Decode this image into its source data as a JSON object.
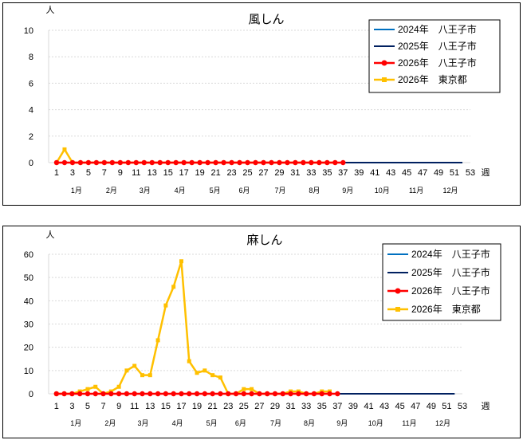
{
  "charts": [
    {
      "type": "line",
      "title": "風しん",
      "y_unit": "人",
      "x_unit": "週",
      "ylim": [
        0,
        10
      ],
      "y_ticks": [
        0,
        2,
        4,
        6,
        8,
        10
      ],
      "x_ticks": [
        1,
        3,
        5,
        7,
        9,
        11,
        13,
        15,
        17,
        19,
        21,
        23,
        25,
        27,
        29,
        31,
        33,
        35,
        37,
        39,
        41,
        43,
        45,
        47,
        49,
        51,
        53
      ],
      "months": [
        {
          "label": "1月",
          "week": 3.5
        },
        {
          "label": "2月",
          "week": 7.9
        },
        {
          "label": "3月",
          "week": 12.1
        },
        {
          "label": "4月",
          "week": 16.5
        },
        {
          "label": "5月",
          "week": 20.9
        },
        {
          "label": "6月",
          "week": 24.6
        },
        {
          "label": "7月",
          "week": 29.1
        },
        {
          "label": "8月",
          "week": 33.4
        },
        {
          "label": "9月",
          "week": 37.6
        },
        {
          "label": "10月",
          "week": 41.9
        },
        {
          "label": "11月",
          "week": 46.2
        },
        {
          "label": "12月",
          "week": 50.5
        }
      ],
      "legend": {
        "position": "top-right",
        "entries": [
          {
            "label": "2024年　八王子市",
            "color": "#0070C0",
            "marker": "none"
          },
          {
            "label": "2025年　八王子市",
            "color": "#002060",
            "marker": "none"
          },
          {
            "label": "2026年　八王子市",
            "color": "#FF0000",
            "marker": "circle"
          },
          {
            "label": "2026年　東京都",
            "color": "#FFC000",
            "marker": "square"
          }
        ]
      },
      "series": [
        {
          "name": "2024年　八王子市",
          "color": "#0070C0",
          "marker": "none",
          "x_start": 1,
          "values": [
            0,
            0,
            0,
            0,
            0,
            0,
            0,
            0,
            0,
            0,
            0,
            0,
            0,
            0,
            0,
            0,
            0,
            0,
            0,
            0,
            0,
            0,
            0,
            0,
            0,
            0,
            0,
            0,
            0,
            0,
            0,
            0,
            0,
            0,
            0,
            0,
            0,
            0,
            0,
            0,
            0,
            0,
            0,
            0,
            0,
            0,
            0,
            0,
            0,
            0,
            0,
            0
          ]
        },
        {
          "name": "2025年　八王子市",
          "color": "#002060",
          "marker": "none",
          "x_start": 1,
          "values": [
            0,
            0,
            0,
            0,
            0,
            0,
            0,
            0,
            0,
            0,
            0,
            0,
            0,
            0,
            0,
            0,
            0,
            0,
            0,
            0,
            0,
            0,
            0,
            0,
            0,
            0,
            0,
            0,
            0,
            0,
            0,
            0,
            0,
            0,
            0,
            0,
            0,
            0,
            0,
            0,
            0,
            0,
            0,
            0,
            0,
            0,
            0,
            0,
            0,
            0,
            0,
            0
          ]
        },
        {
          "name": "2026年　東京都",
          "color": "#FFC000",
          "marker": "square",
          "x_start": 1,
          "values": [
            0,
            1,
            0,
            0,
            0,
            0,
            0,
            0,
            0,
            0,
            0,
            0,
            0,
            0,
            0,
            0,
            0,
            0,
            0,
            0,
            0,
            0,
            0,
            0,
            0,
            0,
            0,
            0,
            0,
            0,
            0,
            0,
            0,
            0,
            0,
            0
          ]
        },
        {
          "name": "2026年　八王子市",
          "color": "#FF0000",
          "marker": "circle",
          "x_start": 1,
          "values": [
            0,
            0,
            0,
            0,
            0,
            0,
            0,
            0,
            0,
            0,
            0,
            0,
            0,
            0,
            0,
            0,
            0,
            0,
            0,
            0,
            0,
            0,
            0,
            0,
            0,
            0,
            0,
            0,
            0,
            0,
            0,
            0,
            0,
            0,
            0,
            0,
            0
          ]
        }
      ]
    },
    {
      "type": "line",
      "title": "麻しん",
      "y_unit": "人",
      "x_unit": "週",
      "ylim": [
        0,
        60
      ],
      "y_ticks": [
        0,
        10,
        20,
        30,
        40,
        50,
        60
      ],
      "x_ticks": [
        1,
        3,
        5,
        7,
        9,
        11,
        13,
        15,
        17,
        19,
        21,
        23,
        25,
        27,
        29,
        31,
        33,
        35,
        37,
        39,
        41,
        43,
        45,
        47,
        49,
        51,
        53
      ],
      "months": [
        {
          "label": "1月",
          "week": 3.5
        },
        {
          "label": "2月",
          "week": 7.9
        },
        {
          "label": "3月",
          "week": 12.1
        },
        {
          "label": "4月",
          "week": 16.5
        },
        {
          "label": "5月",
          "week": 20.9
        },
        {
          "label": "6月",
          "week": 24.6
        },
        {
          "label": "7月",
          "week": 29.1
        },
        {
          "label": "8月",
          "week": 33.4
        },
        {
          "label": "9月",
          "week": 37.6
        },
        {
          "label": "10月",
          "week": 41.9
        },
        {
          "label": "11月",
          "week": 46.2
        },
        {
          "label": "12月",
          "week": 50.5
        }
      ],
      "legend": {
        "position": "top-right",
        "entries": [
          {
            "label": "2024年　八王子市",
            "color": "#0070C0",
            "marker": "none"
          },
          {
            "label": "2025年　八王子市",
            "color": "#002060",
            "marker": "none"
          },
          {
            "label": "2026年　八王子市",
            "color": "#FF0000",
            "marker": "circle"
          },
          {
            "label": "2026年　東京都",
            "color": "#FFC000",
            "marker": "square"
          }
        ]
      },
      "series": [
        {
          "name": "2024年　八王子市",
          "color": "#0070C0",
          "marker": "none",
          "x_start": 1,
          "values": [
            0,
            0,
            0,
            0,
            0,
            0,
            0,
            0,
            0,
            0,
            0,
            0,
            0,
            0,
            0,
            0,
            0,
            0,
            0,
            0,
            0,
            0,
            0,
            0,
            0,
            0,
            0,
            0,
            0,
            0,
            0,
            0,
            0,
            0,
            0,
            0,
            0,
            0,
            0,
            0,
            0,
            0,
            0,
            0,
            0,
            0,
            0,
            0,
            0,
            0,
            0,
            0
          ]
        },
        {
          "name": "2025年　八王子市",
          "color": "#002060",
          "marker": "none",
          "x_start": 1,
          "values": [
            0,
            0,
            0,
            0,
            0,
            0,
            0,
            0,
            0,
            0,
            0,
            0,
            0,
            0,
            0,
            0,
            0,
            0,
            0,
            0,
            0,
            0,
            0,
            0,
            0,
            0,
            0,
            0,
            0,
            0,
            0,
            0,
            0,
            0,
            0,
            0,
            0,
            0,
            0,
            0,
            0,
            0,
            0,
            0,
            0,
            0,
            0,
            0,
            0,
            0,
            0,
            0
          ]
        },
        {
          "name": "2026年　東京都",
          "color": "#FFC000",
          "marker": "square",
          "x_start": 1,
          "values": [
            0,
            0,
            0,
            1,
            2,
            3,
            0,
            1,
            3,
            10,
            12,
            8,
            8,
            23,
            38,
            46,
            57,
            14,
            9,
            10,
            8,
            7,
            0,
            0,
            2,
            2,
            0,
            0,
            0,
            0,
            1,
            1,
            0,
            0,
            1,
            1
          ]
        },
        {
          "name": "2026年　八王子市",
          "color": "#FF0000",
          "marker": "circle",
          "x_start": 1,
          "values": [
            0,
            0,
            0,
            0,
            0,
            0,
            0,
            0,
            0,
            0,
            0,
            0,
            0,
            0,
            0,
            0,
            0,
            0,
            0,
            0,
            0,
            0,
            0,
            0,
            0,
            0,
            0,
            0,
            0,
            0,
            0,
            0,
            0,
            0,
            0,
            0,
            0
          ]
        }
      ]
    }
  ]
}
